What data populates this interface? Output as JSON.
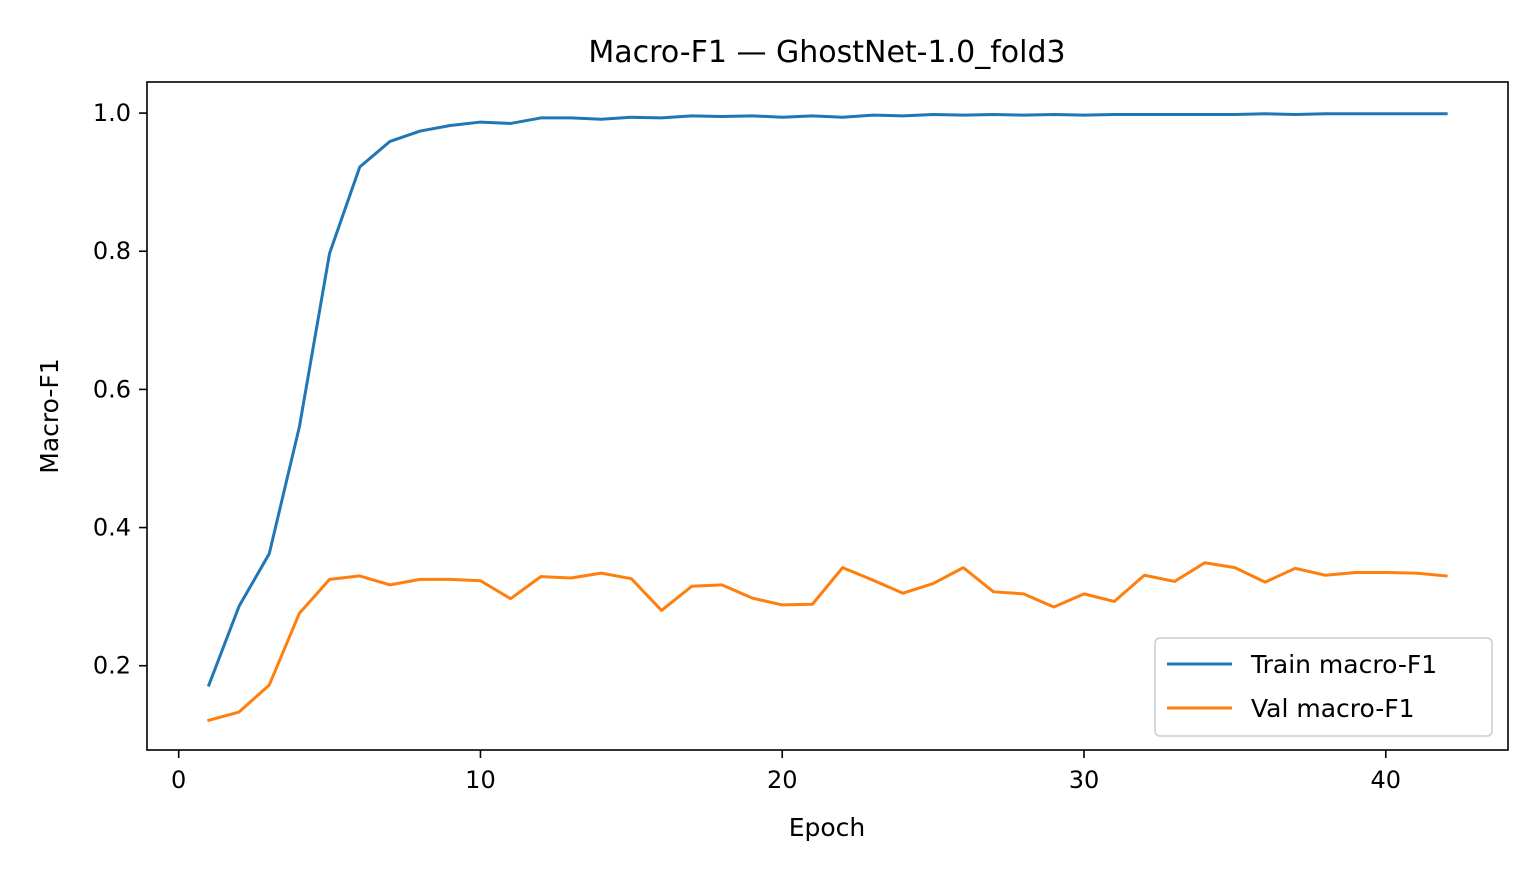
{
  "chart_data": {
    "type": "line",
    "title": "Macro-F1 — GhostNet-1.0_fold3",
    "xlabel": "Epoch",
    "ylabel": "Macro-F1",
    "xlim": [
      -1.05,
      44.05
    ],
    "ylim": [
      0.078,
      1.045
    ],
    "xticks": [
      0,
      10,
      20,
      30,
      40
    ],
    "yticks": [
      0.2,
      0.4,
      0.6,
      0.8,
      1.0
    ],
    "xtick_labels": [
      "0",
      "10",
      "20",
      "30",
      "40"
    ],
    "ytick_labels": [
      "0.2",
      "0.4",
      "0.6",
      "0.8",
      "1.0"
    ],
    "grid": false,
    "legend_position": "lower-right",
    "x": [
      1,
      2,
      3,
      4,
      5,
      6,
      7,
      8,
      9,
      10,
      11,
      12,
      13,
      14,
      15,
      16,
      17,
      18,
      19,
      20,
      21,
      22,
      23,
      24,
      25,
      26,
      27,
      28,
      29,
      30,
      31,
      32,
      33,
      34,
      35,
      36,
      37,
      38,
      39,
      40,
      41,
      42
    ],
    "series": [
      {
        "name": "Train macro-F1",
        "color": "#1f77b4",
        "values": [
          0.172,
          0.286,
          0.362,
          0.546,
          0.797,
          0.922,
          0.959,
          0.974,
          0.982,
          0.987,
          0.985,
          0.993,
          0.993,
          0.991,
          0.994,
          0.993,
          0.996,
          0.995,
          0.996,
          0.994,
          0.996,
          0.994,
          0.997,
          0.996,
          0.998,
          0.997,
          0.998,
          0.997,
          0.998,
          0.997,
          0.998,
          0.998,
          0.998,
          0.998,
          0.998,
          0.999,
          0.998,
          0.999,
          0.999,
          0.999,
          0.999,
          0.999
        ]
      },
      {
        "name": "Val macro-F1",
        "color": "#ff7f0e",
        "values": [
          0.121,
          0.133,
          0.172,
          0.276,
          0.325,
          0.33,
          0.317,
          0.325,
          0.325,
          0.323,
          0.297,
          0.329,
          0.327,
          0.334,
          0.326,
          0.28,
          0.315,
          0.317,
          0.298,
          0.288,
          0.289,
          0.342,
          0.324,
          0.305,
          0.319,
          0.342,
          0.307,
          0.304,
          0.285,
          0.304,
          0.293,
          0.331,
          0.322,
          0.349,
          0.342,
          0.321,
          0.341,
          0.331,
          0.335,
          0.335,
          0.334,
          0.33
        ]
      }
    ]
  }
}
